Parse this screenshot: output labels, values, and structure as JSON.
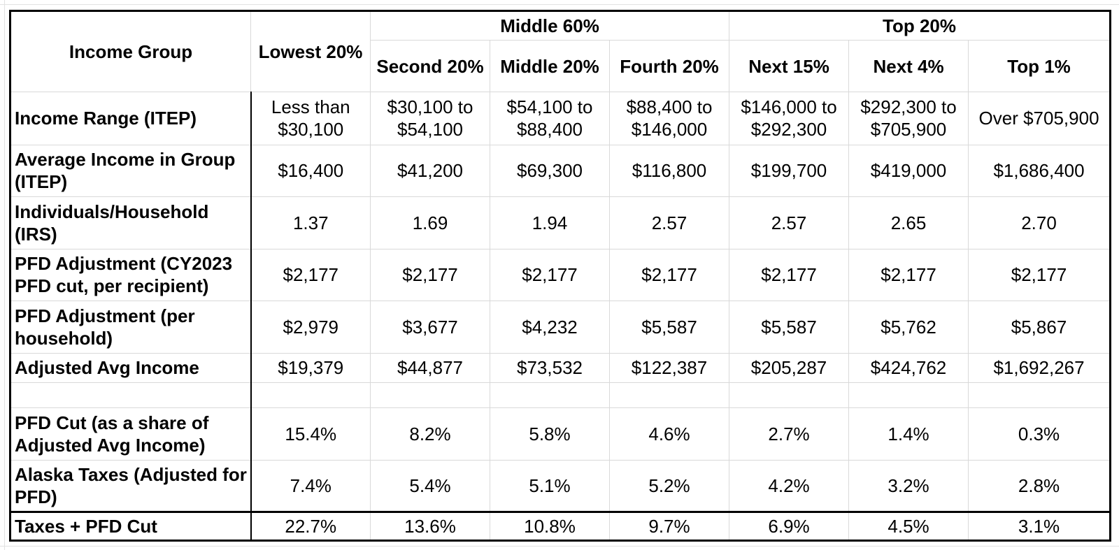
{
  "table": {
    "header": {
      "income_group": "Income Group",
      "lowest": "Lowest 20%",
      "middle_group": "Middle 60%",
      "top_group": "Top 20%",
      "cols": [
        "Second 20%",
        "Middle 20%",
        "Fourth 20%",
        "Next 15%",
        "Next 4%",
        "Top 1%"
      ]
    },
    "rows": [
      {
        "label": "Income Range (ITEP)",
        "values": [
          "Less than $30,100",
          "$30,100 to $54,100",
          "$54,100 to $88,400",
          "$88,400 to $146,000",
          "$146,000 to $292,300",
          "$292,300 to $705,900",
          "Over $705,900"
        ]
      },
      {
        "label": "Average Income in Group (ITEP)",
        "values": [
          "$16,400",
          "$41,200",
          "$69,300",
          "$116,800",
          "$199,700",
          "$419,000",
          "$1,686,400"
        ]
      },
      {
        "label": "Individuals/Household (IRS)",
        "values": [
          "1.37",
          "1.69",
          "1.94",
          "2.57",
          "2.57",
          "2.65",
          "2.70"
        ]
      },
      {
        "label": "PFD Adjustment (CY2023 PFD cut, per recipient)",
        "values": [
          "$2,177",
          "$2,177",
          "$2,177",
          "$2,177",
          "$2,177",
          "$2,177",
          "$2,177"
        ]
      },
      {
        "label": "PFD Adjustment (per household)",
        "values": [
          "$2,979",
          "$3,677",
          "$4,232",
          "$5,587",
          "$5,587",
          "$5,762",
          "$5,867"
        ]
      },
      {
        "label": "Adjusted Avg Income",
        "values": [
          "$19,379",
          "$44,877",
          "$73,532",
          "$122,387",
          "$205,287",
          "$424,762",
          "$1,692,267"
        ]
      },
      {
        "label": "PFD Cut (as a share of Adjusted Avg Income)",
        "values": [
          "15.4%",
          "8.2%",
          "5.8%",
          "4.6%",
          "2.7%",
          "1.4%",
          "0.3%"
        ]
      },
      {
        "label": "Alaska Taxes (Adjusted for PFD)",
        "values": [
          "7.4%",
          "5.4%",
          "5.1%",
          "5.2%",
          "4.2%",
          "3.2%",
          "2.8%"
        ]
      },
      {
        "label": "Taxes + PFD Cut",
        "values": [
          "22.7%",
          "13.6%",
          "10.8%",
          "9.7%",
          "6.9%",
          "4.5%",
          "3.1%"
        ]
      }
    ]
  }
}
